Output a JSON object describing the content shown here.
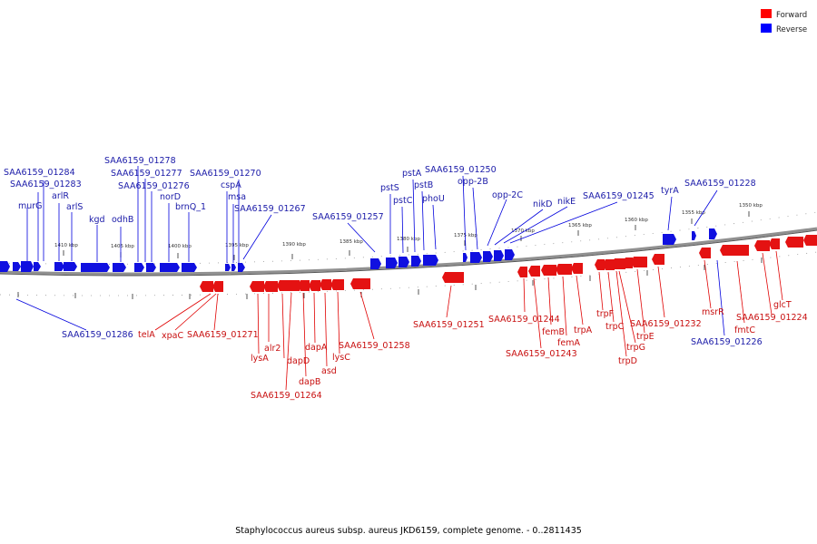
{
  "title": "Staphylococcus aureus subsp. aureus JKD6159, complete genome. - 0..2811435",
  "legend": [
    {
      "label": "Forward",
      "color": "#ff0000"
    },
    {
      "label": "Reverse",
      "color": "#0000ff"
    }
  ],
  "colors": {
    "forward": "#ff0000",
    "reverse": "#0000ff",
    "forward_text": "#c80f0f",
    "reverse_text": "#1a1aa8",
    "backbone": "#888888"
  },
  "ticks": [
    "1410 kbp",
    "1405 kbp",
    "1400 kbp",
    "1395 kbp",
    "1390 kbp",
    "1385 kbp",
    "1380 kbp",
    "1375 kbp",
    "1370 kbp",
    "1365 kbp",
    "1360 kbp",
    "1355 kbp",
    "1350 kbp"
  ],
  "reverse_labels": [
    "SAA6159_01284",
    "SAA6159_01283",
    "murG",
    "arlR",
    "arlS",
    "kgd",
    "odhB",
    "SAA6159_01278",
    "SAA6159_01277",
    "SAA6159_01276",
    "norD",
    "brnQ_1",
    "SAA6159_01270",
    "cspA",
    "msa",
    "SAA6159_01267",
    "SAA6159_01257",
    "pstS",
    "pstC",
    "pstA",
    "pstB",
    "phoU",
    "SAA6159_01250",
    "opp-2B",
    "opp-2C",
    "nikD",
    "nikE",
    "SAA6159_01245",
    "tyrA",
    "SAA6159_01228",
    "SAA6159_01286",
    "SAA6159_01226"
  ],
  "forward_labels": [
    "telA",
    "xpaC",
    "SAA6159_01271",
    "alr2",
    "lysA",
    "dapD",
    "dapA",
    "dapB",
    "asd",
    "lysC",
    "SAA6159_01264",
    "SAA6159_01258",
    "SAA6159_01251",
    "SAA6159_01244",
    "femB",
    "femA",
    "SAA6159_01243",
    "trpA",
    "trpF",
    "trpC",
    "trpG",
    "trpD",
    "trpE",
    "SAA6159_01232",
    "msrR",
    "fmtC",
    "SAA6159_01224",
    "glcT"
  ]
}
